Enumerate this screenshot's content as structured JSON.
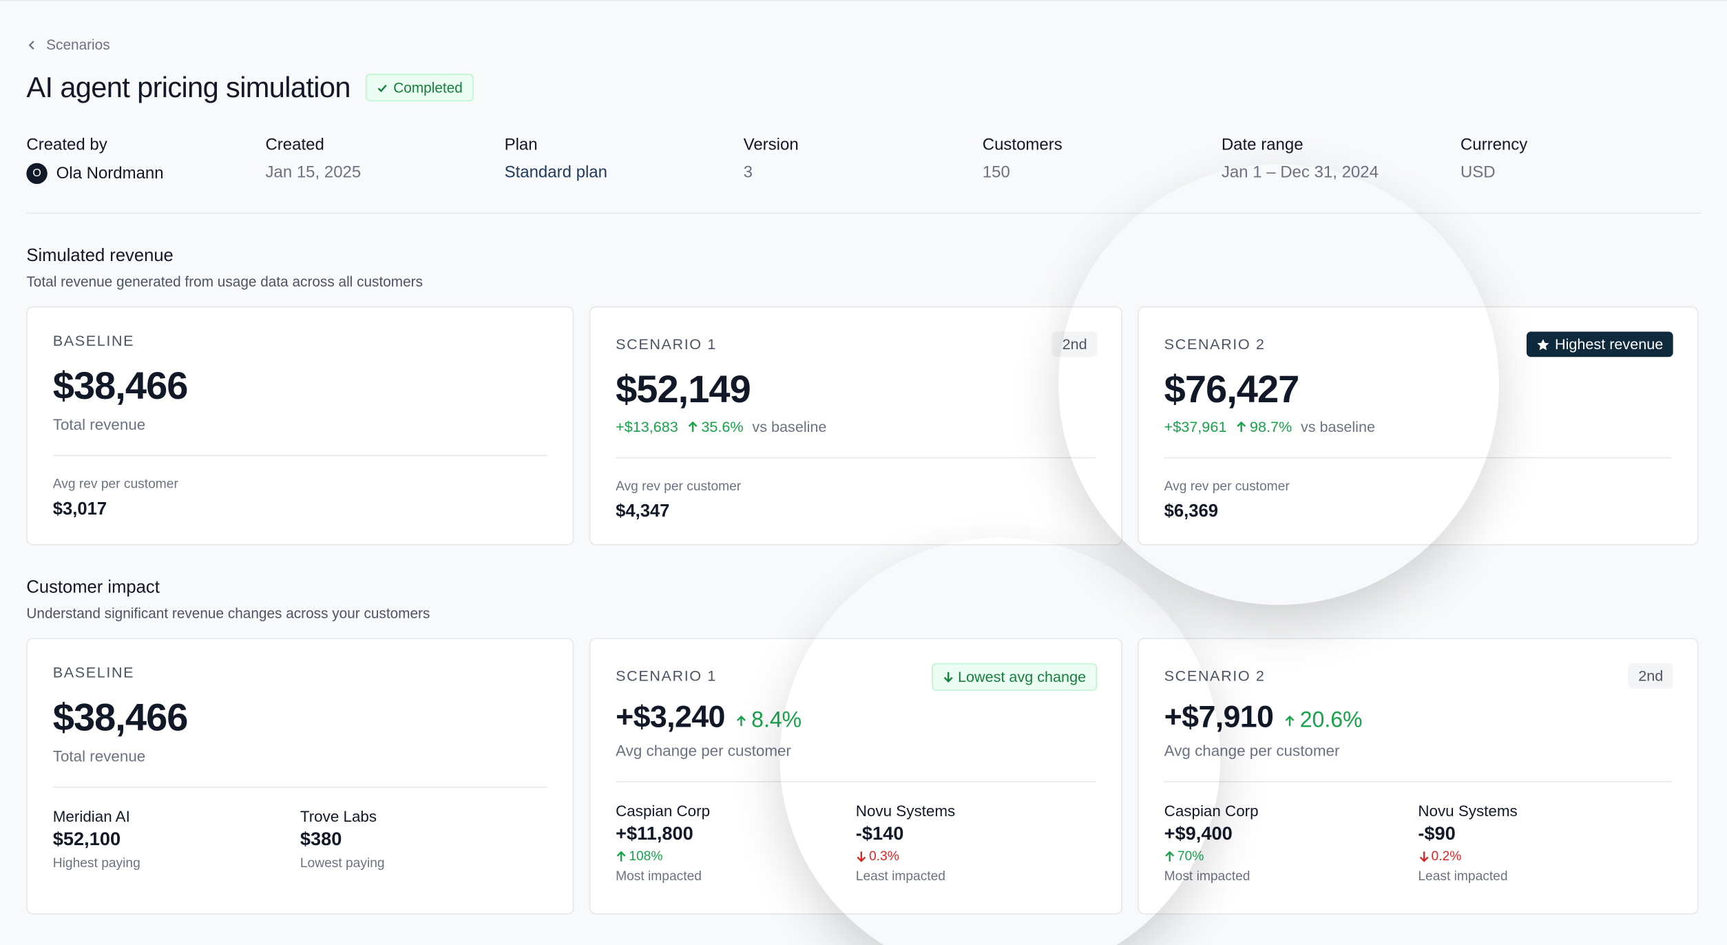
{
  "breadcrumb": "Scenarios",
  "title": "AI agent pricing simulation",
  "status": "Completed",
  "meta": [
    {
      "label": "Created by",
      "value": "Ola Nordmann",
      "avatar": "O"
    },
    {
      "label": "Created",
      "value": "Jan 15, 2025"
    },
    {
      "label": "Plan",
      "value": "Standard plan"
    },
    {
      "label": "Version",
      "value": "3"
    },
    {
      "label": "Customers",
      "value": "150"
    },
    {
      "label": "Date range",
      "value": "Jan 1 – Dec 31, 2024"
    },
    {
      "label": "Currency",
      "value": "USD"
    }
  ],
  "revenue": {
    "title": "Simulated revenue",
    "subtitle": "Total revenue generated from usage data across all customers",
    "cards": [
      {
        "label": "BASELINE",
        "value": "$38,466",
        "caption": "Total revenue",
        "stat_label": "Avg rev per customer",
        "stat_value": "$3,017"
      },
      {
        "label": "SCENARIO 1",
        "badge": "2nd",
        "value": "$52,149",
        "delta": "+$13,683",
        "pct": "35.6%",
        "vs": "vs baseline",
        "stat_label": "Avg rev per customer",
        "stat_value": "$4,347"
      },
      {
        "label": "SCENARIO 2",
        "badge": "Highest revenue",
        "value": "$76,427",
        "delta": "+$37,961",
        "pct": "98.7%",
        "vs": "vs baseline",
        "stat_label": "Avg rev per customer",
        "stat_value": "$6,369"
      }
    ]
  },
  "impact": {
    "title": "Customer impact",
    "subtitle": "Understand significant revenue changes across your customers",
    "baseline": {
      "label": "BASELINE",
      "value": "$38,466",
      "caption": "Total revenue",
      "customers": [
        {
          "name": "Meridian AI",
          "value": "$52,100",
          "caption": "Highest paying"
        },
        {
          "name": "Trove Labs",
          "value": "$380",
          "caption": "Lowest paying"
        }
      ]
    },
    "scenarios": [
      {
        "label": "SCENARIO 1",
        "badge": "Lowest avg change",
        "value": "+$3,240",
        "pct": "8.4%",
        "caption": "Avg change per customer",
        "customers": [
          {
            "name": "Caspian Corp",
            "value": "+$11,800",
            "pct": "108%",
            "caption": "Most impacted"
          },
          {
            "name": "Novu Systems",
            "value": "-$140",
            "pct": "0.3%",
            "caption": "Least impacted"
          }
        ]
      },
      {
        "label": "SCENARIO 2",
        "badge": "2nd",
        "value": "+$7,910",
        "pct": "20.6%",
        "caption": "Avg change per customer",
        "customers": [
          {
            "name": "Caspian Corp",
            "value": "+$9,400",
            "pct": "70%",
            "caption": "Most impacted"
          },
          {
            "name": "Novu Systems",
            "value": "-$90",
            "pct": "0.2%",
            "caption": "Least impacted"
          }
        ]
      }
    ]
  }
}
